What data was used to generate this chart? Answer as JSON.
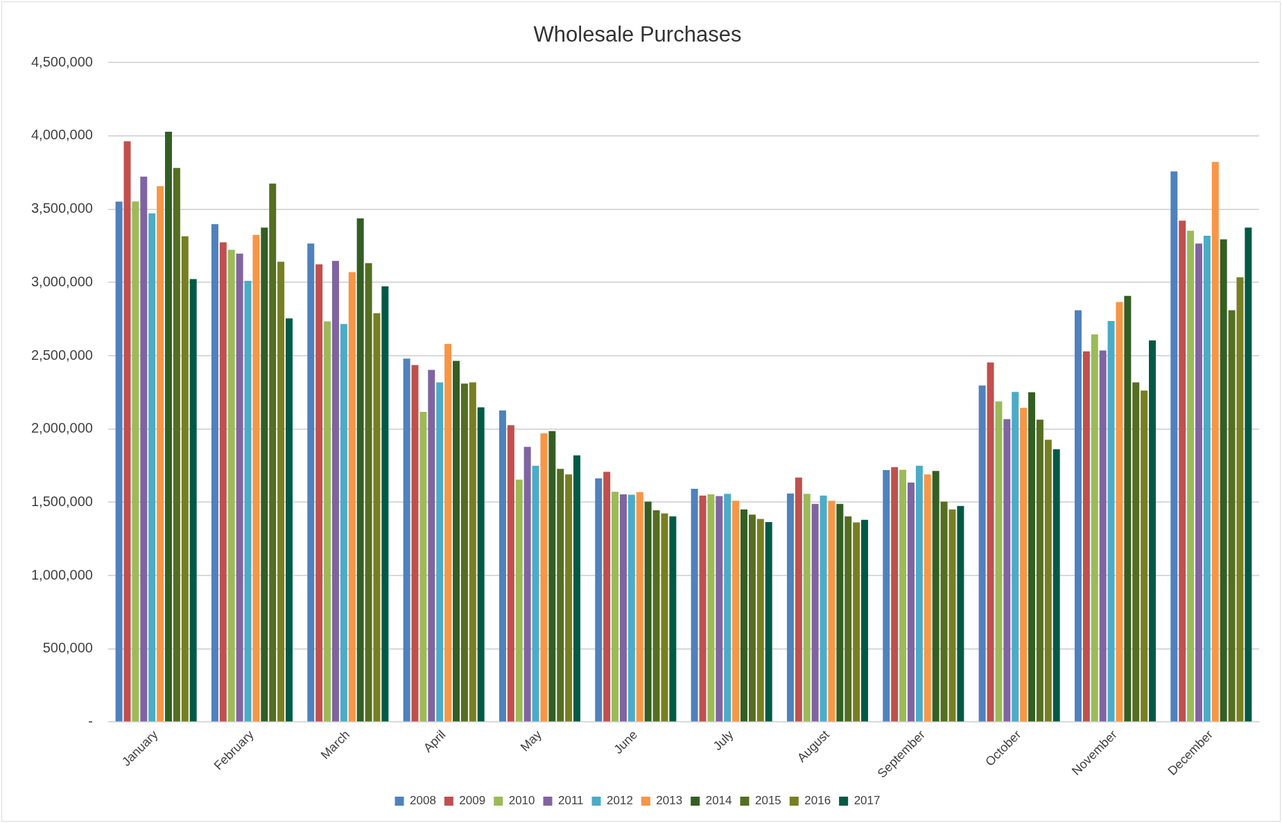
{
  "chart_data": {
    "type": "bar",
    "title": "Wholesale Purchases",
    "categories": [
      "January",
      "February",
      "March",
      "April",
      "May",
      "June",
      "July",
      "August",
      "September",
      "October",
      "November",
      "December"
    ],
    "series": [
      {
        "name": "2008",
        "color": "#4f81bd",
        "values": [
          3551000,
          3397000,
          3265000,
          2480000,
          2126000,
          1663000,
          1592000,
          1560000,
          1719000,
          2297000,
          2810000,
          3757000
        ]
      },
      {
        "name": "2009",
        "color": "#c0504d",
        "values": [
          3963000,
          3273000,
          3123000,
          2436000,
          2026000,
          1707000,
          1545000,
          1669000,
          1740000,
          2454000,
          2530000,
          3421000
        ]
      },
      {
        "name": "2010",
        "color": "#9bbb59",
        "values": [
          3553000,
          3223000,
          2734000,
          2117000,
          1654000,
          1572000,
          1554000,
          1557000,
          1722000,
          2188000,
          2645000,
          3353000
        ]
      },
      {
        "name": "2011",
        "color": "#8064a2",
        "values": [
          3722000,
          3197000,
          3147000,
          2403000,
          1878000,
          1554000,
          1542000,
          1489000,
          1634000,
          2067000,
          2536000,
          3265000
        ]
      },
      {
        "name": "2012",
        "color": "#4bacc6",
        "values": [
          3471000,
          3011000,
          2716000,
          2318000,
          1749000,
          1551000,
          1557000,
          1545000,
          1749000,
          2253000,
          2737000,
          3318000
        ]
      },
      {
        "name": "2013",
        "color": "#f79646",
        "values": [
          3657000,
          3324000,
          3070000,
          2580000,
          1970000,
          1569000,
          1510000,
          1510000,
          1690000,
          2144000,
          2866000,
          3822000
        ]
      },
      {
        "name": "2014",
        "color": "#335f23",
        "values": [
          4028000,
          3374000,
          3436000,
          2465000,
          1985000,
          1504000,
          1451000,
          1489000,
          1713000,
          2250000,
          2908000,
          3294000
        ]
      },
      {
        "name": "2015",
        "color": "#546e22",
        "values": [
          3781000,
          3674000,
          3132000,
          2309000,
          1728000,
          1445000,
          1416000,
          1404000,
          1504000,
          2064000,
          2318000,
          2810000
        ]
      },
      {
        "name": "2016",
        "color": "#777f22",
        "values": [
          3315000,
          3141000,
          2790000,
          2318000,
          1690000,
          1424000,
          1386000,
          1362000,
          1451000,
          1926000,
          2262000,
          3034000
        ]
      },
      {
        "name": "2017",
        "color": "#005a46",
        "values": [
          3023000,
          2754000,
          2973000,
          2147000,
          1820000,
          1404000,
          1365000,
          1380000,
          1474000,
          1861000,
          2604000,
          3374000
        ]
      }
    ],
    "ylim": [
      0,
      4500000
    ],
    "yticks": [
      {
        "value": 0,
        "label": "-"
      },
      {
        "value": 500000,
        "label": "500,000"
      },
      {
        "value": 1000000,
        "label": "1,000,000"
      },
      {
        "value": 1500000,
        "label": "1,500,000"
      },
      {
        "value": 2000000,
        "label": "2,000,000"
      },
      {
        "value": 2500000,
        "label": "2,500,000"
      },
      {
        "value": 3000000,
        "label": "3,000,000"
      },
      {
        "value": 3500000,
        "label": "3,500,000"
      },
      {
        "value": 4000000,
        "label": "4,000,000"
      },
      {
        "value": 4500000,
        "label": "4,500,000"
      }
    ],
    "grid": "y",
    "legend": "bottom"
  }
}
